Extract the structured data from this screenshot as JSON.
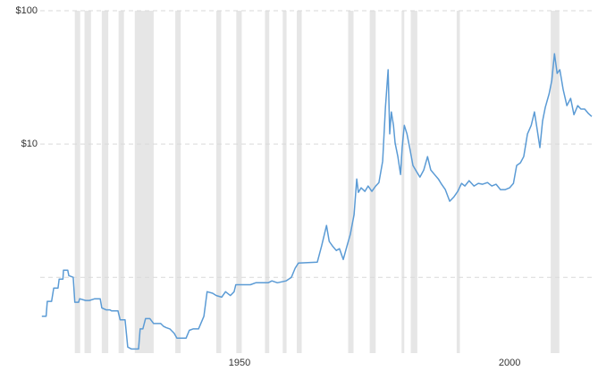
{
  "chart_data": {
    "type": "line",
    "log_scale_y": true,
    "grid": true,
    "xlim": [
      1913.1,
      2015.2
    ],
    "xticks": [
      1950,
      2000
    ],
    "ylim": [
      0.27,
      100
    ],
    "yticks": [
      {
        "value": 100,
        "label": "$100"
      },
      {
        "value": 10,
        "label": "$10"
      },
      {
        "value": 1,
        "label": null
      }
    ],
    "shaded_color": "#e6e6e6",
    "shaded_ranges": [
      [
        1919.5,
        1920.5
      ],
      [
        1921.3,
        1922.5
      ],
      [
        1924.5,
        1925.7
      ],
      [
        1927.6,
        1928.6
      ],
      [
        1930.6,
        1934.1
      ],
      [
        1938.1,
        1939.1
      ],
      [
        1945.7,
        1946.6
      ],
      [
        1949.4,
        1950.4
      ],
      [
        1954.7,
        1955.5
      ],
      [
        1958.0,
        1958.7
      ],
      [
        1960.6,
        1961.5
      ],
      [
        1970.1,
        1971.1
      ],
      [
        1974.1,
        1975.2
      ],
      [
        1980.0,
        1980.5
      ],
      [
        1981.7,
        1982.9
      ],
      [
        1990.2,
        1990.8
      ],
      [
        2007.6,
        2009.2
      ]
    ],
    "x": [
      1913.4,
      1914.2,
      1914.4,
      1915.2,
      1915.6,
      1916.4,
      1916.6,
      1917.3,
      1917.4,
      1918.2,
      1918.4,
      1919.2,
      1919.5,
      1920.2,
      1920.4,
      1921.5,
      1922.2,
      1923.2,
      1924.2,
      1924.5,
      1925.3,
      1926.0,
      1926.3,
      1927.5,
      1927.9,
      1928.8,
      1929.3,
      1930.0,
      1930.5,
      1931.3,
      1931.6,
      1932.1,
      1932.6,
      1933.4,
      1934.1,
      1935.4,
      1935.9,
      1936.4,
      1937.1,
      1937.9,
      1938.4,
      1940.1,
      1940.7,
      1941.4,
      1942.4,
      1943.4,
      1944.0,
      1945.0,
      1945.7,
      1946.7,
      1947.4,
      1948.3,
      1949.0,
      1949.3,
      1950.3,
      1952.0,
      1953.0,
      1955.3,
      1956.0,
      1957.0,
      1958.6,
      1959.6,
      1960.3,
      1960.9,
      1964.4,
      1965.2,
      1966.1,
      1966.6,
      1967.2,
      1967.9,
      1968.5,
      1969.2,
      1969.9,
      1970.5,
      1971.2,
      1971.7,
      1972.0,
      1972.5,
      1973.2,
      1973.8,
      1974.5,
      1975.2,
      1975.8,
      1976.5,
      1977.0,
      1977.5,
      1977.8,
      1978.1,
      1978.5,
      1978.8,
      1979.3,
      1979.8,
      1980.1,
      1980.5,
      1981.0,
      1981.5,
      1982.1,
      1982.8,
      1983.4,
      1984.1,
      1984.8,
      1985.4,
      1986.1,
      1986.8,
      1987.4,
      1988.1,
      1988.9,
      1989.7,
      1990.4,
      1991.1,
      1991.7,
      1992.5,
      1993.4,
      1994.2,
      1995.0,
      1995.9,
      1996.7,
      1997.5,
      1998.3,
      1999.2,
      2000.0,
      2000.7,
      2001.3,
      2002.0,
      2002.6,
      2003.3,
      2004.0,
      2004.6,
      2005.1,
      2005.6,
      2006.1,
      2006.6,
      2007.3,
      2007.8,
      2008.3,
      2008.8,
      2009.3,
      2009.9,
      2010.6,
      2011.3,
      2011.9,
      2012.6,
      2013.2,
      2013.9,
      2014.6,
      2015.2
    ],
    "series": [
      {
        "color": "#5b9bd5",
        "values": [
          0.51,
          0.51,
          0.66,
          0.66,
          0.83,
          0.83,
          0.97,
          0.97,
          1.13,
          1.13,
          1.03,
          1.0,
          0.65,
          0.65,
          0.69,
          0.67,
          0.67,
          0.69,
          0.69,
          0.59,
          0.57,
          0.57,
          0.56,
          0.56,
          0.48,
          0.48,
          0.3,
          0.29,
          0.29,
          0.29,
          0.41,
          0.41,
          0.49,
          0.49,
          0.45,
          0.45,
          0.43,
          0.42,
          0.41,
          0.38,
          0.35,
          0.35,
          0.4,
          0.41,
          0.41,
          0.51,
          0.78,
          0.76,
          0.73,
          0.71,
          0.78,
          0.73,
          0.78,
          0.88,
          0.88,
          0.88,
          0.91,
          0.91,
          0.94,
          0.91,
          0.94,
          1.0,
          1.17,
          1.28,
          1.3,
          1.72,
          2.45,
          1.86,
          1.72,
          1.59,
          1.64,
          1.36,
          1.72,
          2.1,
          2.95,
          5.47,
          4.34,
          4.69,
          4.41,
          4.84,
          4.41,
          4.84,
          5.14,
          7.45,
          18.8,
          36.1,
          11.9,
          17.4,
          13.8,
          10.2,
          8.05,
          5.91,
          9.4,
          13.8,
          11.9,
          9.4,
          6.9,
          6.19,
          5.65,
          6.39,
          8.05,
          6.39,
          5.91,
          5.47,
          4.99,
          4.55,
          3.72,
          4.02,
          4.41,
          5.07,
          4.84,
          5.31,
          4.84,
          5.07,
          4.99,
          5.14,
          4.84,
          4.99,
          4.55,
          4.55,
          4.69,
          5.07,
          6.9,
          7.23,
          8.05,
          11.9,
          13.8,
          17.4,
          12.8,
          9.4,
          14.9,
          18.8,
          23.8,
          30.0,
          47.6,
          33.9,
          36.1,
          25.7,
          19.4,
          22.0,
          16.6,
          19.4,
          18.3,
          18.3,
          16.9,
          16.1
        ]
      }
    ]
  }
}
